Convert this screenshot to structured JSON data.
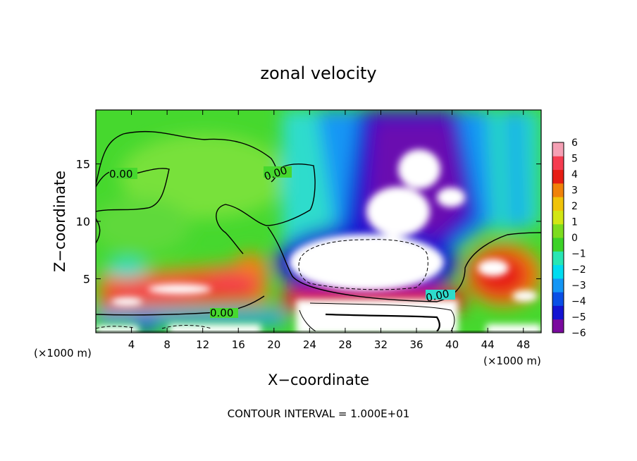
{
  "chart_data": {
    "type": "heatmap",
    "title": "zonal velocity",
    "xlabel": "X−coordinate",
    "ylabel": "Z−coordinate",
    "x_unit_left": "(×1000 m)",
    "x_unit_right": "(×1000 m)",
    "footer": "CONTOUR INTERVAL = 1.000E+01",
    "xlim": [
      0,
      50
    ],
    "ylim": [
      0.3,
      19.7
    ],
    "x_ticks": [
      4,
      8,
      12,
      16,
      20,
      24,
      28,
      32,
      36,
      40,
      44,
      48
    ],
    "x_tick_labels": [
      "4",
      "8",
      "12",
      "16",
      "20",
      "24",
      "28",
      "32",
      "36",
      "40",
      "44",
      "48"
    ],
    "y_ticks": [
      5,
      10,
      15
    ],
    "y_tick_labels": [
      "5",
      "10",
      "15"
    ],
    "colorbar": {
      "min": -6,
      "max": 6,
      "tick_values": [
        6,
        5,
        4,
        3,
        2,
        1,
        0,
        -1,
        -2,
        -3,
        -4,
        -5,
        -6
      ],
      "tick_labels": [
        "6",
        "5",
        "4",
        "3",
        "2",
        "1",
        "0",
        "−1",
        "−2",
        "−3",
        "−4",
        "−5",
        "−6"
      ],
      "colors": [
        "#7a0a9e",
        "#1414d2",
        "#0a4fe6",
        "#1496f5",
        "#00dcf0",
        "#28e6b4",
        "#3cd228",
        "#7ddc1e",
        "#d2e614",
        "#f0c30a",
        "#f0820a",
        "#e61e14",
        "#f53c50",
        "#f5a0b4"
      ]
    },
    "contour_labels": [
      {
        "x": 2.4,
        "z": 13.9,
        "text": "0.00"
      },
      {
        "x": 20.5,
        "z": 13.9,
        "text": "0.00"
      },
      {
        "x": 14.5,
        "z": 1.7,
        "text": "0.00"
      },
      {
        "x": 38.5,
        "z": 3.2,
        "text": "0.00"
      }
    ],
    "features": [
      {
        "x": 35,
        "z": 10.5,
        "value": -10,
        "label": "strong westward jet core (white, off-scale)"
      },
      {
        "x": 8,
        "z": 3.5,
        "value": 7,
        "label": "eastward band (off-scale)"
      },
      {
        "x": 45,
        "z": 5.5,
        "value": 7,
        "label": "eastward core (off-scale)"
      },
      {
        "x": 14,
        "z": 14,
        "value": 0.5,
        "label": "near-zero upper layer"
      }
    ]
  }
}
